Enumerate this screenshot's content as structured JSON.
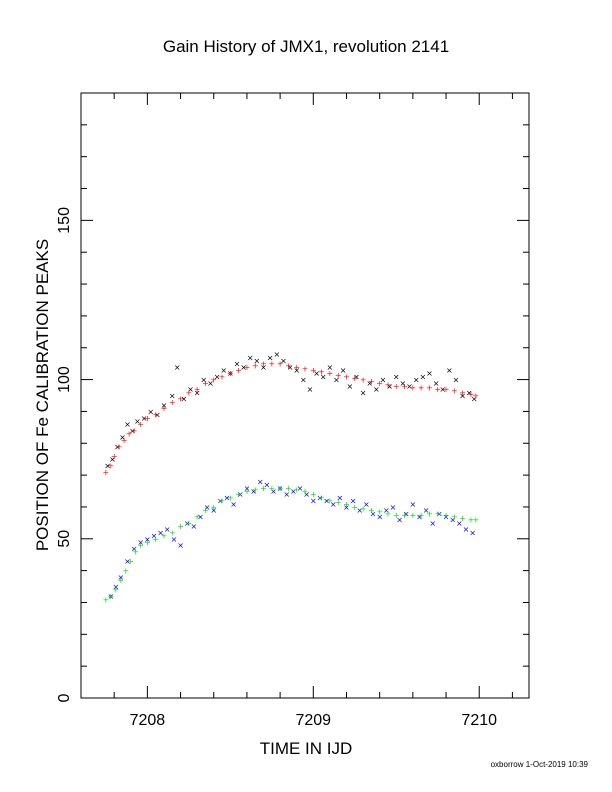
{
  "chart_data": {
    "type": "scatter",
    "title": "Gain History of JMX1, revolution 2141",
    "xlabel": "TIME IN IJD",
    "ylabel": "POSITION OF Fe CALIBRATION PEAKS",
    "xlim": [
      7207.6,
      7210.3
    ],
    "ylim": [
      0,
      190
    ],
    "x_ticks": [
      7208,
      7209,
      7210
    ],
    "y_ticks": [
      0,
      50,
      100,
      150
    ],
    "grid": false,
    "series": [
      {
        "color": "#000000",
        "marker": "x",
        "x": [
          7207.76,
          7207.79,
          7207.82,
          7207.85,
          7207.88,
          7207.91,
          7207.94,
          7207.98,
          7208.02,
          7208.06,
          7208.1,
          7208.15,
          7208.18,
          7208.22,
          7208.26,
          7208.3,
          7208.34,
          7208.38,
          7208.42,
          7208.46,
          7208.5,
          7208.54,
          7208.58,
          7208.62,
          7208.66,
          7208.7,
          7208.74,
          7208.78,
          7208.82,
          7208.86,
          7208.9,
          7208.94,
          7208.98,
          7209.02,
          7209.06,
          7209.1,
          7209.14,
          7209.18,
          7209.22,
          7209.26,
          7209.3,
          7209.34,
          7209.38,
          7209.42,
          7209.46,
          7209.5,
          7209.54,
          7209.58,
          7209.62,
          7209.66,
          7209.7,
          7209.74,
          7209.78,
          7209.82,
          7209.86,
          7209.9,
          7209.94,
          7209.97
        ],
        "y": [
          73,
          75,
          79,
          82,
          86,
          84,
          87,
          88,
          90,
          89,
          92,
          95,
          104,
          94,
          97,
          96,
          100,
          99,
          101,
          103,
          102,
          105,
          104,
          107,
          106,
          104,
          107,
          108,
          106,
          104,
          103,
          100,
          97,
          102,
          101,
          104,
          100,
          103,
          98,
          101,
          96,
          99,
          97,
          100,
          98,
          101,
          99,
          98,
          100,
          101,
          102,
          99,
          97,
          103,
          100,
          95,
          96,
          94
        ]
      },
      {
        "color": "#ff0000",
        "marker": "+",
        "x": [
          7207.75,
          7207.78,
          7207.8,
          7207.83,
          7207.86,
          7207.89,
          7207.92,
          7207.96,
          7208.0,
          7208.05,
          7208.1,
          7208.15,
          7208.2,
          7208.25,
          7208.3,
          7208.35,
          7208.4,
          7208.45,
          7208.5,
          7208.55,
          7208.6,
          7208.65,
          7208.7,
          7208.75,
          7208.8,
          7208.85,
          7208.9,
          7208.95,
          7209.0,
          7209.05,
          7209.1,
          7209.15,
          7209.2,
          7209.25,
          7209.3,
          7209.35,
          7209.4,
          7209.45,
          7209.5,
          7209.55,
          7209.6,
          7209.65,
          7209.7,
          7209.75,
          7209.8,
          7209.85,
          7209.9,
          7209.95,
          7209.98
        ],
        "y": [
          71,
          73,
          76,
          79,
          81,
          83,
          84,
          86,
          88,
          89,
          91,
          93,
          94,
          96,
          97,
          99,
          100,
          101,
          102,
          103,
          104,
          104.5,
          105,
          105,
          105,
          104.5,
          104,
          103.5,
          103,
          102.5,
          102,
          101.5,
          101,
          100.5,
          100,
          99.5,
          99,
          98.5,
          98,
          98,
          97.5,
          97.5,
          97.5,
          97,
          97,
          96.5,
          96,
          95.5,
          95
        ]
      },
      {
        "color": "#0000ff",
        "marker": "x",
        "x": [
          7207.78,
          7207.81,
          7207.84,
          7207.88,
          7207.92,
          7207.96,
          7208.0,
          7208.04,
          7208.08,
          7208.12,
          7208.16,
          7208.2,
          7208.24,
          7208.28,
          7208.32,
          7208.36,
          7208.4,
          7208.44,
          7208.48,
          7208.52,
          7208.56,
          7208.6,
          7208.64,
          7208.68,
          7208.72,
          7208.76,
          7208.8,
          7208.84,
          7208.88,
          7208.92,
          7208.96,
          7209.0,
          7209.04,
          7209.08,
          7209.12,
          7209.16,
          7209.2,
          7209.24,
          7209.28,
          7209.32,
          7209.36,
          7209.4,
          7209.44,
          7209.48,
          7209.52,
          7209.56,
          7209.6,
          7209.64,
          7209.68,
          7209.72,
          7209.76,
          7209.8,
          7209.84,
          7209.88,
          7209.92,
          7209.96
        ],
        "y": [
          32,
          35,
          38,
          43,
          47,
          49,
          50,
          51,
          52,
          53,
          50,
          48,
          55,
          54,
          57,
          60,
          59,
          62,
          63,
          61,
          64,
          66,
          65,
          68,
          67,
          65,
          66,
          64,
          65,
          66,
          64,
          62,
          63,
          62,
          61,
          63,
          60,
          62,
          59,
          61,
          58,
          57,
          59,
          60,
          56,
          58,
          61,
          57,
          59,
          55,
          58,
          57,
          56,
          55,
          53,
          52
        ]
      },
      {
        "color": "#00dd00",
        "marker": "+",
        "x": [
          7207.75,
          7207.78,
          7207.81,
          7207.84,
          7207.87,
          7207.9,
          7207.93,
          7207.96,
          7208.0,
          7208.05,
          7208.1,
          7208.15,
          7208.2,
          7208.25,
          7208.3,
          7208.35,
          7208.4,
          7208.45,
          7208.5,
          7208.55,
          7208.6,
          7208.65,
          7208.7,
          7208.75,
          7208.8,
          7208.85,
          7208.9,
          7208.95,
          7209.0,
          7209.05,
          7209.1,
          7209.15,
          7209.2,
          7209.25,
          7209.3,
          7209.35,
          7209.4,
          7209.45,
          7209.5,
          7209.55,
          7209.6,
          7209.65,
          7209.7,
          7209.75,
          7209.8,
          7209.85,
          7209.9,
          7209.95,
          7209.98
        ],
        "y": [
          31,
          32,
          34,
          37,
          40,
          43,
          46,
          48,
          49,
          50,
          51,
          52,
          54,
          55,
          57,
          59,
          60,
          62,
          63,
          64,
          65,
          65.5,
          66,
          66,
          66,
          66,
          65.5,
          65,
          64,
          63,
          62,
          61.5,
          61,
          60,
          59.5,
          59,
          58.5,
          58,
          57.5,
          57.5,
          57.5,
          57.5,
          58,
          58,
          57.5,
          57,
          56.5,
          56,
          56
        ]
      }
    ],
    "footer": "oxborrow  1-Oct-2019 10:39"
  }
}
